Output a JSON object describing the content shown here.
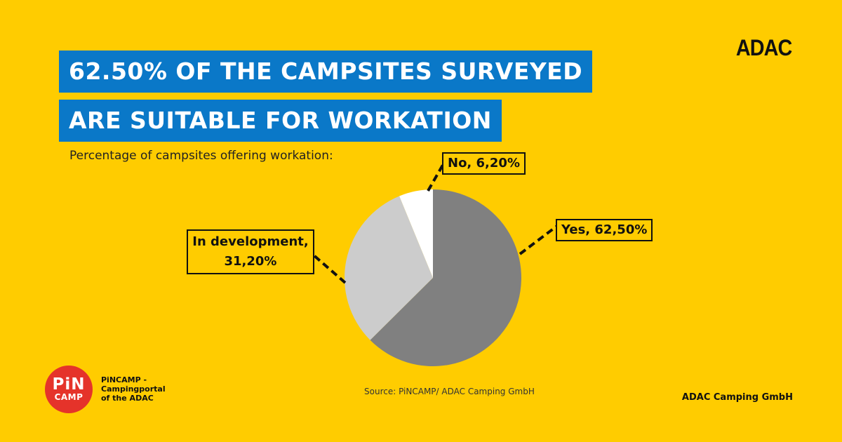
{
  "title": {
    "line1": "62.50% OF THE CAMPSITES SURVEYED",
    "line2": "ARE SUITABLE FOR WORKATION"
  },
  "subtitle": "Percentage of campsites offering workation:",
  "brand": {
    "adac_logo": "ADAC",
    "pincamp_logo_line1": "PiN",
    "pincamp_logo_line2": "CAMP",
    "pincamp_text": [
      "PiNCAMP -",
      "Campingportal",
      "of the ADAC"
    ],
    "footer_right": "ADAC Camping GmbH"
  },
  "source": "Source: PiNCAMP/ ADAC Camping GmbH",
  "colors": {
    "background": "#FFCC00",
    "title_band": "#0A78C8",
    "slice_yes": "#808080",
    "slice_development": "#CCCCCC",
    "slice_no": "#FFFFFF",
    "pincamp_red": "#E5332A"
  },
  "chart_data": {
    "type": "pie",
    "title": "62.50% OF THE CAMPSITES SURVEYED ARE SUITABLE FOR WORKATION",
    "subtitle": "Percentage of campsites offering workation:",
    "slices": [
      {
        "label": "Yes",
        "value": 62.5,
        "display": "Yes, 62,50%",
        "color": "#808080"
      },
      {
        "label": "In development",
        "value": 31.2,
        "display_line1": "In development,",
        "display_line2": "31,20%",
        "color": "#CCCCCC"
      },
      {
        "label": "No",
        "value": 6.2,
        "display": "No, 6,20%",
        "color": "#FFFFFF"
      }
    ],
    "start": "12 o'clock",
    "direction": "clockwise"
  }
}
